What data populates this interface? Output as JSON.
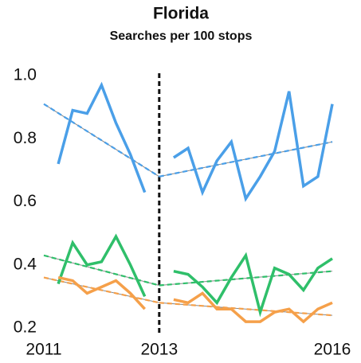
{
  "chart_data": {
    "type": "line",
    "title": "Florida",
    "subtitle": "Searches per 100 stops",
    "x": [
      2011.25,
      2011.5,
      2011.75,
      2012,
      2012.25,
      2012.5,
      2012.75,
      2013,
      2013.25,
      2013.5,
      2013.75,
      2014,
      2014.25,
      2014.5,
      2014.75,
      2015,
      2015.25,
      2015.5,
      2015.75,
      2016
    ],
    "series": [
      {
        "color": "#4a9fe8",
        "values": [
          0.72,
          0.89,
          0.88,
          0.97,
          0.85,
          0.75,
          0.63,
          null,
          0.74,
          0.77,
          0.63,
          0.73,
          0.79,
          0.61,
          0.68,
          0.76,
          0.95,
          0.65,
          0.68,
          0.91
        ]
      },
      {
        "color": "#2fbf6a",
        "values": [
          0.34,
          0.47,
          0.4,
          0.41,
          0.49,
          0.4,
          0.3,
          null,
          0.38,
          0.37,
          0.33,
          0.28,
          0.36,
          0.43,
          0.25,
          0.39,
          0.37,
          0.32,
          0.39,
          0.42
        ]
      },
      {
        "color": "#f5a04a",
        "values": [
          0.36,
          0.35,
          0.31,
          0.33,
          0.35,
          0.31,
          0.26,
          null,
          0.29,
          0.28,
          0.31,
          0.26,
          0.26,
          0.22,
          0.22,
          0.25,
          0.26,
          0.22,
          0.26,
          0.28
        ]
      }
    ],
    "trends": [
      {
        "color": "#4a9fe8",
        "x": [
          2011,
          2013
        ],
        "values": [
          0.91,
          0.68
        ]
      },
      {
        "color": "#4a9fe8",
        "x": [
          2013,
          2016
        ],
        "values": [
          0.68,
          0.79
        ]
      },
      {
        "color": "#2fbf6a",
        "x": [
          2011,
          2013
        ],
        "values": [
          0.43,
          0.335
        ]
      },
      {
        "color": "#2fbf6a",
        "x": [
          2013,
          2016
        ],
        "values": [
          0.335,
          0.38
        ]
      },
      {
        "color": "#f5a04a",
        "x": [
          2011,
          2013
        ],
        "values": [
          0.36,
          0.28
        ]
      },
      {
        "color": "#f5a04a",
        "x": [
          2013,
          2016
        ],
        "values": [
          0.28,
          0.24
        ]
      }
    ],
    "breakpoint": 2013,
    "xlim": [
      2011,
      2016
    ],
    "xticks": [
      2011,
      2013,
      2016
    ],
    "ylim": [
      0.2,
      1.0
    ],
    "yticks": [
      0.2,
      0.4,
      0.6,
      0.8,
      {
        "value": 1,
        "label": "1.0"
      }
    ]
  }
}
